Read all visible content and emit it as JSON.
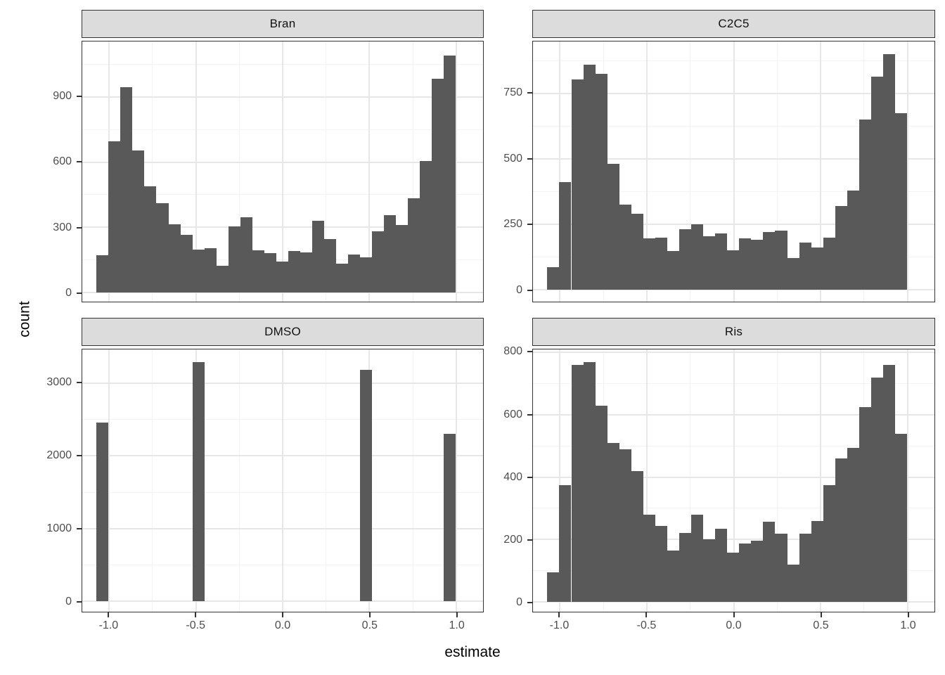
{
  "figure": {
    "background": "#ffffff"
  },
  "labels": {
    "x_axis": "estimate",
    "y_axis": "count"
  },
  "axis_x": {
    "tick_labels": [
      "-1.0",
      "-0.5",
      "0.0",
      "0.5",
      "1.0"
    ],
    "tick_values": [
      -1.0,
      -0.5,
      0.0,
      0.5,
      1.0
    ],
    "minor_values": [
      -0.75,
      -0.25,
      0.25,
      0.75
    ],
    "range": [
      -1.155,
      1.155
    ]
  },
  "style": {
    "bar_fill": "#595959",
    "panel_border": "#333333",
    "strip_background": "#dcdcdc",
    "grid_major": "#e7e7e7",
    "grid_minor": "#f3f3f3",
    "tick_label_color": "#4d4d4d",
    "text_color": "#000000"
  },
  "chart_data": [
    {
      "type": "bar",
      "subtype": "histogram",
      "facet": "Bran",
      "xlabel": "estimate",
      "ylabel": "count",
      "bin_start": -1.0725,
      "bin_width": 0.069,
      "x_range": [
        -1.155,
        1.155
      ],
      "y_range": [
        -42,
        1155
      ],
      "y_ticks": [
        0,
        300,
        600,
        900
      ],
      "y_tick_labels": [
        "0",
        "300",
        "600",
        "900"
      ],
      "grid": true,
      "legend": "none",
      "counts": [
        170,
        695,
        945,
        655,
        490,
        410,
        315,
        265,
        198,
        205,
        123,
        305,
        345,
        195,
        182,
        143,
        190,
        185,
        330,
        245,
        133,
        176,
        163,
        280,
        357,
        312,
        435,
        605,
        985,
        1090
      ]
    },
    {
      "type": "bar",
      "subtype": "histogram",
      "facet": "C2C5",
      "xlabel": "estimate",
      "ylabel": "count",
      "bin_start": -1.0725,
      "bin_width": 0.069,
      "x_range": [
        -1.155,
        1.155
      ],
      "y_range": [
        -46,
        949
      ],
      "y_ticks": [
        0,
        250,
        500,
        750
      ],
      "y_tick_labels": [
        "0",
        "250",
        "500",
        "750"
      ],
      "grid": true,
      "legend": "none",
      "counts": [
        85,
        410,
        805,
        860,
        825,
        480,
        325,
        290,
        195,
        200,
        148,
        230,
        250,
        205,
        215,
        150,
        195,
        190,
        220,
        225,
        120,
        180,
        160,
        200,
        320,
        380,
        650,
        815,
        900,
        675
      ]
    },
    {
      "type": "bar",
      "subtype": "histogram",
      "facet": "DMSO",
      "xlabel": "estimate",
      "ylabel": "count",
      "bin_start": -1.0725,
      "bin_width": 0.069,
      "x_range": [
        -1.155,
        1.155
      ],
      "y_range": [
        -145,
        3465
      ],
      "y_ticks": [
        0,
        1000,
        2000,
        3000
      ],
      "y_tick_labels": [
        "0",
        "1000",
        "2000",
        "3000"
      ],
      "grid": true,
      "legend": "none",
      "counts": [
        2460,
        0,
        0,
        0,
        0,
        0,
        0,
        0,
        3290,
        0,
        0,
        0,
        0,
        0,
        0,
        0,
        0,
        0,
        0,
        0,
        0,
        0,
        3180,
        0,
        0,
        0,
        0,
        0,
        0,
        2300
      ]
    },
    {
      "type": "bar",
      "subtype": "histogram",
      "facet": "Ris",
      "xlabel": "estimate",
      "ylabel": "count",
      "bin_start": -1.0725,
      "bin_width": 0.069,
      "x_range": [
        -1.155,
        1.155
      ],
      "y_range": [
        -32,
        810
      ],
      "y_ticks": [
        0,
        200,
        400,
        600,
        800
      ],
      "y_tick_labels": [
        "0",
        "200",
        "400",
        "600",
        "800"
      ],
      "grid": true,
      "legend": "none",
      "counts": [
        95,
        375,
        760,
        770,
        630,
        510,
        490,
        420,
        280,
        243,
        165,
        220,
        280,
        200,
        235,
        157,
        188,
        197,
        258,
        218,
        120,
        218,
        260,
        375,
        460,
        495,
        625,
        720,
        760,
        540
      ]
    }
  ]
}
